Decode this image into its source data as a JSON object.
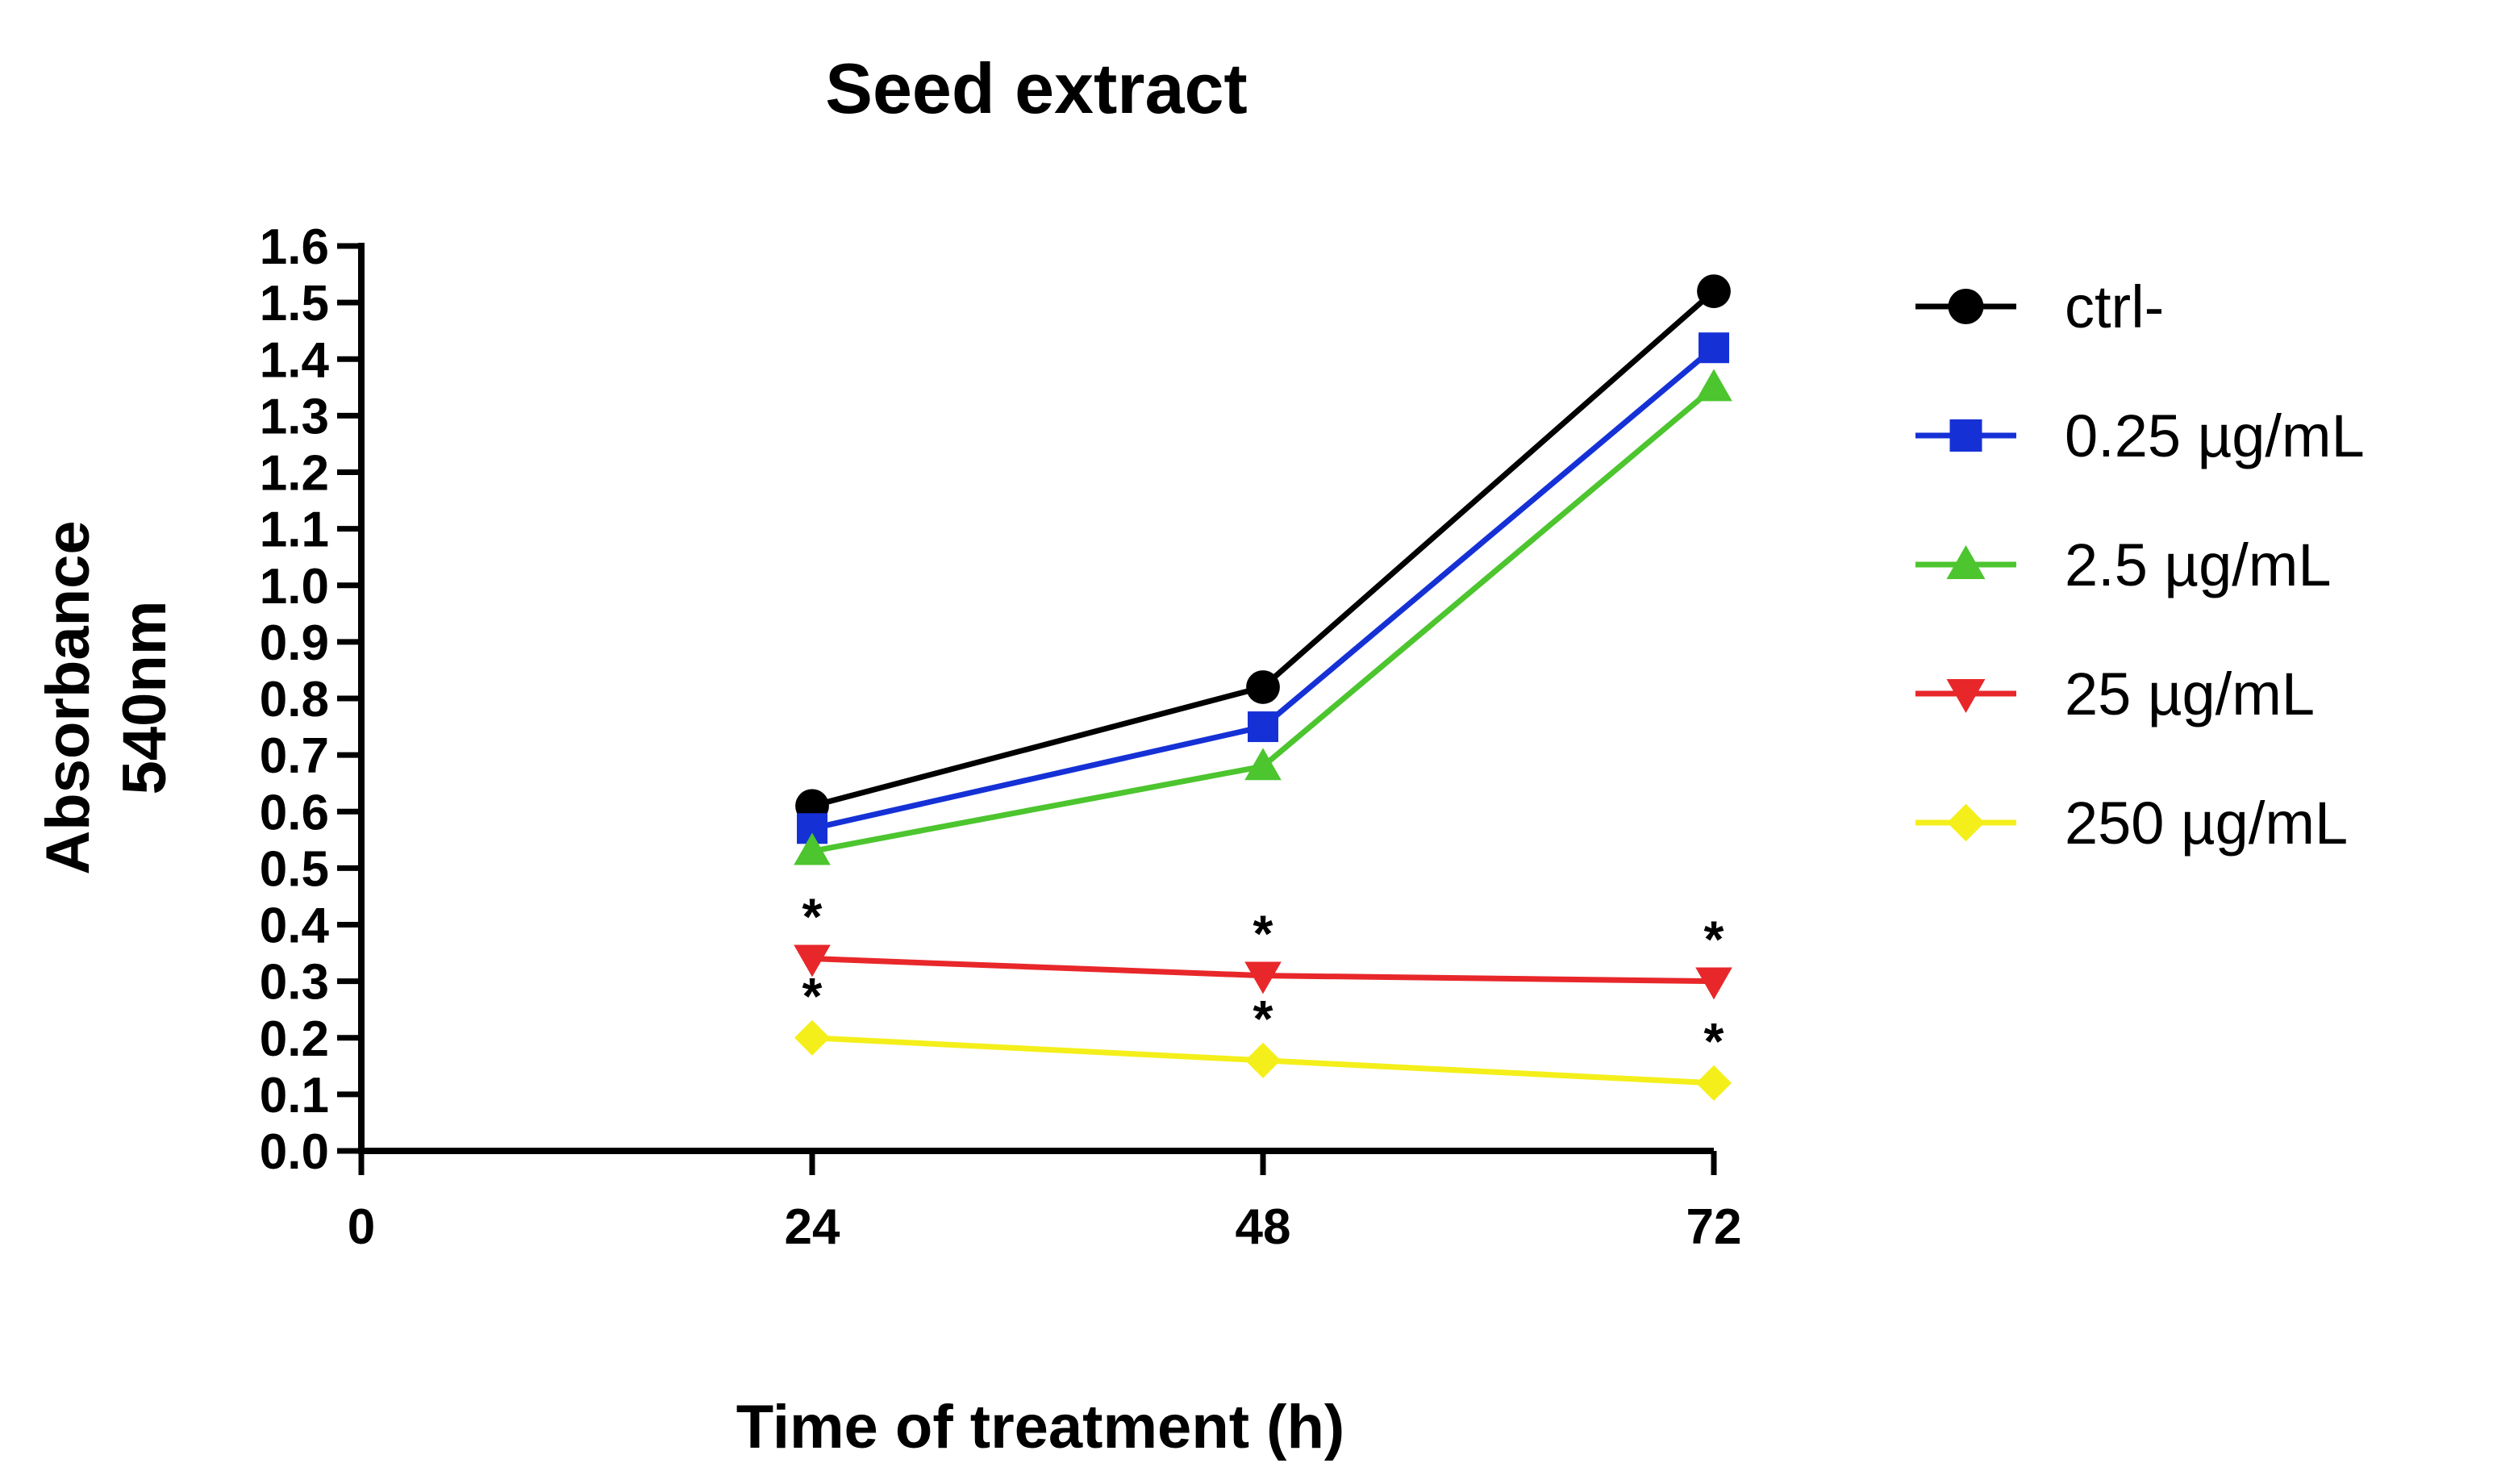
{
  "chart_data": {
    "type": "line",
    "title": "Seed extract",
    "xlabel": "Time of treatment (h)",
    "ylabel_lines": [
      "Absorbance",
      "540nm"
    ],
    "x": [
      24,
      48,
      72
    ],
    "x_ticks": [
      0,
      24,
      48,
      72
    ],
    "xlim": [
      0,
      72
    ],
    "y_ticks": [
      "0.0",
      "0.1",
      "0.2",
      "0.3",
      "0.4",
      "0.5",
      "0.6",
      "0.7",
      "0.8",
      "0.9",
      "1.0",
      "1.1",
      "1.2",
      "1.3",
      "1.4",
      "1.5",
      "1.6"
    ],
    "ylim": [
      0,
      1.6
    ],
    "grid": false,
    "legend_position": "right",
    "series": [
      {
        "name": "ctrl-",
        "color": "#000000",
        "marker": "circle",
        "values": [
          0.61,
          0.82,
          1.52
        ],
        "significant": [
          false,
          false,
          false
        ]
      },
      {
        "name": "0.25 µg/mL",
        "color": "#1531d6",
        "marker": "square",
        "values": [
          0.57,
          0.75,
          1.42
        ],
        "significant": [
          false,
          false,
          false
        ]
      },
      {
        "name": "2.5 µg/mL",
        "color": "#4cc52e",
        "marker": "triangle-up",
        "values": [
          0.53,
          0.68,
          1.35
        ],
        "significant": [
          false,
          false,
          false
        ]
      },
      {
        "name": "25 µg/mL",
        "color": "#e8272a",
        "marker": "triangle-down",
        "values": [
          0.34,
          0.31,
          0.3
        ],
        "significant": [
          true,
          true,
          true
        ]
      },
      {
        "name": "250 µg/mL",
        "color": "#f4ef1a",
        "marker": "diamond",
        "values": [
          0.2,
          0.16,
          0.12
        ],
        "significant": [
          true,
          true,
          true
        ]
      }
    ],
    "significance_marker": "*"
  }
}
